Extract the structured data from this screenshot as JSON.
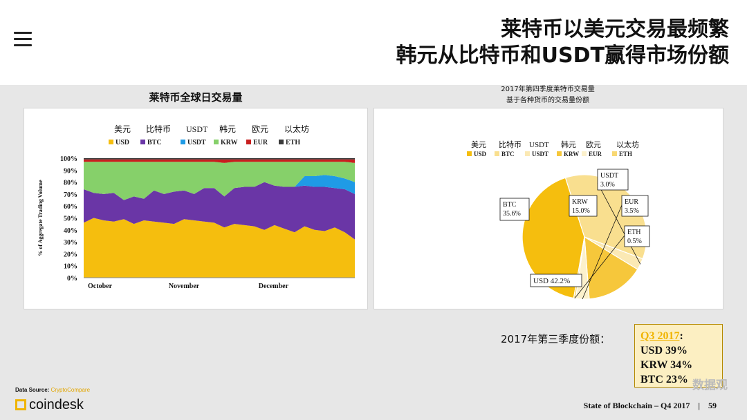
{
  "header": {
    "title_line1": "莱特币以美元交易最频繁",
    "title_line2": "韩元从比特币和USDT赢得市场份额"
  },
  "colors": {
    "USD": "#f5be0e",
    "BTC": "#6a36a6",
    "USDT": "#1f9be6",
    "KRW": "#86d06a",
    "EUR": "#c81e1e",
    "ETH": "#3a3a3a",
    "accent": "#f0b400"
  },
  "left_chart": {
    "heading": "莱特币全球日交易量"
  },
  "right_chart": {
    "heading_line1": "2017年第四季度莱特币交易量",
    "heading_line2": "基于各种货币的交易量份额"
  },
  "q3": {
    "label": "2017年第三季度份额：",
    "title": "Q3 2017",
    "colon": ":",
    "usd": "USD 39%",
    "krw": "KRW 34%",
    "btc": "BTC 23%"
  },
  "footer": {
    "source_label": "Data Source: ",
    "source_name": "CryptoCompare",
    "logo_text": "coindesk",
    "report": "State of Blockchain – Q4 2017",
    "separator": "|",
    "page": "59",
    "watermark": "数据观"
  },
  "chart_data": [
    {
      "type": "area",
      "title": "莱特币全球日交易量",
      "ylabel": "% of Aggregate Trading Volume",
      "xlabel": "",
      "x_ticks": [
        "October",
        "November",
        "December"
      ],
      "y_ticks": [
        "0%",
        "10%",
        "20%",
        "30%",
        "40%",
        "50%",
        "60%",
        "70%",
        "80%",
        "90%",
        "100%"
      ],
      "ylim": [
        0,
        100
      ],
      "stacked": true,
      "legend_cn": [
        "美元",
        "比特币",
        "USDT",
        "韩元",
        "欧元",
        "以太坊"
      ],
      "legend_en": [
        "USD",
        "BTC",
        "USDT",
        "KRW",
        "EUR",
        "ETH"
      ],
      "legend_position": "top",
      "x": [
        "Oct",
        "Oct",
        "Oct",
        "Oct",
        "Oct",
        "Oct",
        "Oct",
        "Oct",
        "Nov",
        "Nov",
        "Nov",
        "Nov",
        "Nov",
        "Nov",
        "Nov",
        "Nov",
        "Nov",
        "Nov",
        "Dec",
        "Dec",
        "Dec",
        "Dec",
        "Dec",
        "Dec",
        "Dec",
        "Dec",
        "Dec",
        "Dec"
      ],
      "series": [
        {
          "name": "USD",
          "values": [
            46,
            50,
            48,
            47,
            49,
            45,
            48,
            47,
            46,
            45,
            49,
            48,
            47,
            46,
            42,
            45,
            44,
            43,
            40,
            44,
            41,
            38,
            43,
            40,
            39,
            42,
            38,
            32
          ]
        },
        {
          "name": "BTC",
          "values": [
            28,
            21,
            22,
            24,
            16,
            23,
            18,
            26,
            24,
            27,
            24,
            22,
            28,
            29,
            26,
            30,
            32,
            33,
            40,
            33,
            35,
            38,
            34,
            36,
            37,
            33,
            36,
            38
          ]
        },
        {
          "name": "USDT",
          "values": [
            0,
            0,
            0,
            0,
            0,
            0,
            0,
            0,
            0,
            0,
            0,
            0,
            0,
            0,
            0,
            0,
            0,
            0,
            0,
            0,
            0,
            0,
            8,
            9,
            10,
            10,
            9,
            10
          ]
        },
        {
          "name": "KRW",
          "values": [
            23,
            26,
            27,
            26,
            32,
            29,
            31,
            24,
            27,
            25,
            24,
            27,
            22,
            22,
            28,
            22,
            21,
            21,
            17,
            20,
            21,
            21,
            12,
            12,
            11,
            12,
            14,
            16
          ]
        },
        {
          "name": "EUR",
          "values": [
            2,
            2,
            2,
            2,
            2,
            2,
            2,
            2,
            2,
            2,
            2,
            2,
            2,
            2,
            3,
            2,
            2,
            2,
            2,
            2,
            2,
            2,
            2,
            2,
            2,
            2,
            2,
            3
          ]
        },
        {
          "name": "ETH",
          "values": [
            1,
            1,
            1,
            1,
            1,
            1,
            1,
            1,
            1,
            1,
            1,
            1,
            1,
            1,
            1,
            1,
            1,
            1,
            1,
            1,
            1,
            1,
            1,
            1,
            1,
            1,
            1,
            1
          ]
        }
      ]
    },
    {
      "type": "pie",
      "title": "2017年第四季度莱特币交易量 基于各种货币的交易量份额",
      "legend_cn": [
        "美元",
        "比特币",
        "USDT",
        "韩元",
        "欧元",
        "以太坊"
      ],
      "legend_en": [
        "USD",
        "BTC",
        "USDT",
        "KRW",
        "EUR",
        "ETH"
      ],
      "legend_position": "top",
      "slices": [
        {
          "name": "USD",
          "value": 42.2,
          "label": "USD 42.2%"
        },
        {
          "name": "BTC",
          "value": 35.6,
          "label_name": "BTC",
          "label_value": "35.6%"
        },
        {
          "name": "USDT",
          "value": 3.0,
          "label_name": "USDT",
          "label_value": "3.0%"
        },
        {
          "name": "KRW",
          "value": 15.0,
          "label_name": "KRW",
          "label_value": "15.0%"
        },
        {
          "name": "EUR",
          "value": 3.5,
          "label_name": "EUR",
          "label_value": "3.5%"
        },
        {
          "name": "ETH",
          "value": 0.5,
          "label_name": "ETH",
          "label_value": "0.5%"
        }
      ],
      "slice_colors": {
        "USD": "#f5be0e",
        "BTC": "#f9df8f",
        "USDT": "#fbe9b4",
        "KRW": "#f6c73b",
        "EUR": "#fcf1cc",
        "ETH": "#f8d873"
      }
    }
  ]
}
